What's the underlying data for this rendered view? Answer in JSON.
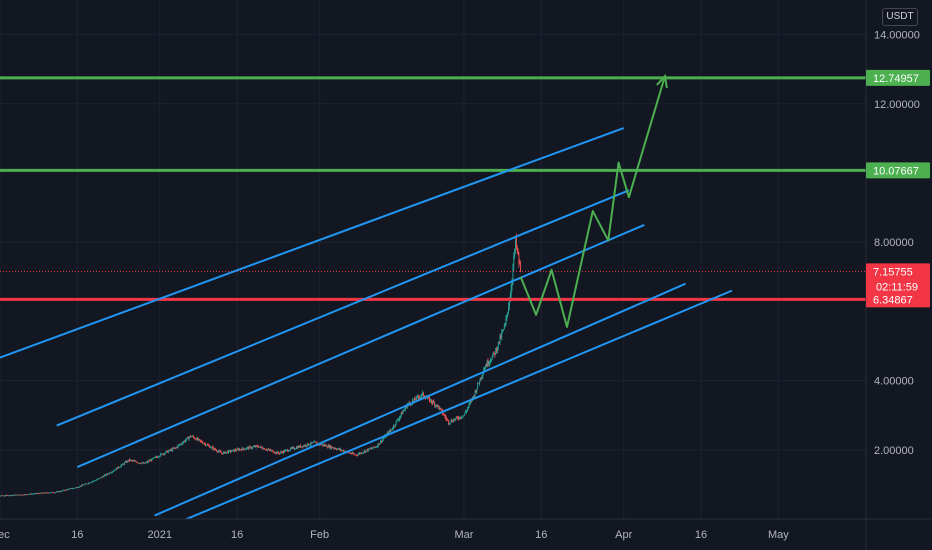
{
  "currency_badge": "USDT",
  "colors": {
    "background": "#131722",
    "grid": "#1e2230",
    "channel": "#2196f3",
    "resistance": "#4caf50",
    "support": "#f23645",
    "projection": "#4caf50",
    "candle_up": "#26a69a",
    "candle_down": "#ef5350",
    "axis_text": "#b2b5be"
  },
  "chart_data": {
    "type": "candlestick",
    "title": "",
    "xlabel": "",
    "ylabel": "",
    "x_range": [
      "2020-12-01",
      "2021-05-18"
    ],
    "y_range": [
      0.0,
      15.0
    ],
    "grid": true,
    "price_ticks": [
      "2.00000",
      "4.00000",
      "8.00000",
      "12.00000",
      "14.00000"
    ],
    "time_ticks": [
      {
        "label": "Dec",
        "date": "2020-12-01"
      },
      {
        "label": "16",
        "date": "2020-12-16"
      },
      {
        "label": "2021",
        "date": "2021-01-01"
      },
      {
        "label": "16",
        "date": "2021-01-16"
      },
      {
        "label": "Feb",
        "date": "2021-02-01"
      },
      {
        "label": "Mar",
        "date": "2021-03-01"
      },
      {
        "label": "16",
        "date": "2021-03-16"
      },
      {
        "label": "Apr",
        "date": "2021-04-01"
      },
      {
        "label": "16",
        "date": "2021-04-16"
      },
      {
        "label": "May",
        "date": "2021-05-01"
      }
    ],
    "close_path": [
      [
        "2020-11-28",
        0.65
      ],
      [
        "2020-12-05",
        0.7
      ],
      [
        "2020-12-12",
        0.78
      ],
      [
        "2020-12-16",
        0.92
      ],
      [
        "2020-12-20",
        1.15
      ],
      [
        "2020-12-23",
        1.4
      ],
      [
        "2020-12-26",
        1.7
      ],
      [
        "2020-12-29",
        1.6
      ],
      [
        "2021-01-01",
        1.85
      ],
      [
        "2021-01-04",
        2.05
      ],
      [
        "2021-01-07",
        2.4
      ],
      [
        "2021-01-10",
        2.15
      ],
      [
        "2021-01-13",
        1.9
      ],
      [
        "2021-01-16",
        2.0
      ],
      [
        "2021-01-20",
        2.1
      ],
      [
        "2021-01-24",
        1.9
      ],
      [
        "2021-01-27",
        2.05
      ],
      [
        "2021-01-31",
        2.2
      ],
      [
        "2021-02-04",
        2.05
      ],
      [
        "2021-02-08",
        1.85
      ],
      [
        "2021-02-12",
        2.1
      ],
      [
        "2021-02-15",
        2.6
      ],
      [
        "2021-02-18",
        3.3
      ],
      [
        "2021-02-21",
        3.6
      ],
      [
        "2021-02-24",
        3.25
      ],
      [
        "2021-02-26",
        2.8
      ],
      [
        "2021-03-01",
        3.0
      ],
      [
        "2021-03-03",
        3.6
      ],
      [
        "2021-03-05",
        4.4
      ],
      [
        "2021-03-07",
        4.8
      ],
      [
        "2021-03-09",
        5.6
      ],
      [
        "2021-03-10",
        6.5
      ],
      [
        "2021-03-11",
        8.0
      ],
      [
        "2021-03-12",
        7.15755
      ]
    ],
    "channel_lines": [
      {
        "x1": "2020-11-28",
        "y1": 4.5,
        "x2": "2021-04-01",
        "y2": 11.3
      },
      {
        "x1": "2020-12-12",
        "y1": 2.7,
        "x2": "2021-04-02",
        "y2": 9.5
      },
      {
        "x1": "2020-12-16",
        "y1": 1.5,
        "x2": "2021-04-05",
        "y2": 8.5
      },
      {
        "x1": "2020-12-31",
        "y1": 0.1,
        "x2": "2021-04-13",
        "y2": 6.8
      },
      {
        "x1": "2021-01-03",
        "y1": -0.2,
        "x2": "2021-04-22",
        "y2": 6.6
      }
    ],
    "horizontal_levels": [
      {
        "value": 12.74957,
        "label": "12.74957",
        "color": "#4caf50"
      },
      {
        "value": 10.07667,
        "label": "10.07667",
        "color": "#4caf50"
      },
      {
        "value": 6.34867,
        "label": "6.34867",
        "color": "#f23645"
      }
    ],
    "current_price": {
      "value": 7.15755,
      "label": "7.15755",
      "countdown": "02:11:59",
      "color": "#f23645"
    },
    "projection_path": [
      [
        "2021-03-12",
        7.0
      ],
      [
        "2021-03-15",
        5.9
      ],
      [
        "2021-03-18",
        7.2
      ],
      [
        "2021-03-21",
        5.55
      ],
      [
        "2021-03-26",
        8.9
      ],
      [
        "2021-03-29",
        8.05
      ],
      [
        "2021-03-31",
        10.3
      ],
      [
        "2021-04-02",
        9.3
      ],
      [
        "2021-04-09",
        12.8
      ]
    ]
  }
}
